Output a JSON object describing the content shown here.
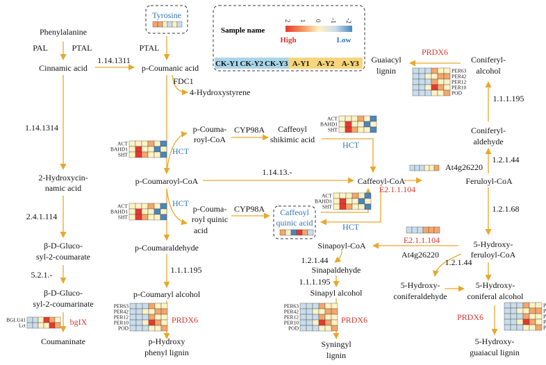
{
  "colors": {
    "arrow": "#E9A82B",
    "enzyme_red": "#D9342B",
    "enzyme_blue": "#2E74B5",
    "high": "#E8382E",
    "mid_high": "#F5A66A",
    "mid": "#FFF3C4",
    "mid_low": "#C9DDEB",
    "low": "#4A86BF",
    "ck_label_bg": "#A9D5EA",
    "a_label_bg": "#F6D57B"
  },
  "compounds": {
    "phenylalanine": "Phenylalanine",
    "cinnamic": "Cinnamic acid",
    "hydroxycin_1": "2-Hydroxycin-",
    "hydroxycin_2": "namic acid",
    "glucosyl_coumarate_1": "β-D-Gluco-",
    "glucosyl_coumarate_2": "syl-2-coumarate",
    "glucosyl_coumarinate_1": "β-D-Gluco-",
    "glucosyl_coumarinate_2": "syl-2-coumarinate",
    "coumaninate": "Coumaninate",
    "tyrosine": "Tyrosine",
    "p_coumanic": "p-Coumanic acid",
    "hydroxystyrene": "4-Hydroxystyrene",
    "p_coumaroyl_coa_a_1": "p-Couma-",
    "p_coumaroyl_coa_a_2": "royl-CoA",
    "caffeoyl_shikimic_1": "Caffeoyl",
    "caffeoyl_shikimic_2": "shikimic acid",
    "p_coumaroyl_coa": "p-Coumaroyl-CoA",
    "caffeoyl_coa": "Caffeoyl-CoA",
    "feruloyl_coa": "Feruloyl-CoA",
    "p_coumaroyl_quinic_1": "p-Couma-",
    "p_coumaroyl_quinic_2": "royl quinic",
    "p_coumaroyl_quinic_3": "acid",
    "caffeoyl_quinic_1": "Caffeoyl",
    "caffeoyl_quinic_2": "quinic acid",
    "p_coumaraldehyde": "p-Coumaraldehyde",
    "p_coumaryl_alcohol": "p-Coumaryl alcohol",
    "p_hydroxy_lignin_1": "p-Hydroxy",
    "p_hydroxy_lignin_2": "phenyl lignin",
    "sinapoyl_coa": "Sinapoyl-CoA",
    "sinapaldehyde": "Sinapaldehyde",
    "sinapyl_alcohol": "Sinapyl alcohol",
    "syningyl_lignin_1": "Syningyl",
    "syningyl_lignin_2": "lignin",
    "hydroxy_feruloyl_1": "5-Hydroxy-",
    "hydroxy_feruloyl_2": "feruloyl-CoA",
    "hydroxy_coniferaldehyde_1": "5-Hydroxy-",
    "hydroxy_coniferaldehyde_2": "coniferaldehyde",
    "hydroxy_coniferal_alcohol_1": "5-Hydroxy-",
    "hydroxy_coniferal_alcohol_2": "coniferal alcohol",
    "hydroxy_guaiacul_lignin_1": "5-Hydroxy-",
    "hydroxy_guaiacul_lignin_2": "guaiacul lignin",
    "coniferyl_aldehyde_1": "Coniferyl-",
    "coniferyl_aldehyde_2": "aldehyde",
    "coniferyl_alcohol_1": "Coniferyl-",
    "coniferyl_alcohol_2": "alcohol",
    "guaiacyl_lignin_1": "Guaiacyl",
    "guaiacyl_lignin_2": "lignin"
  },
  "enzymes": {
    "pal_1": "PAL",
    "ptal_1": "PTAL",
    "ptal_2": "PTAL",
    "ec_1_14_1311": "1.14.1311",
    "ec_1_14_1314": "1.14.1314",
    "ec_2_4_1_114": "2.4.1.114",
    "ec_5_2_1": "5.2.1.-",
    "bglx": "bgIX",
    "fdc1": "FDC1",
    "hct_1": "HCT",
    "hct_2": "HCT",
    "hct_3": "HCT",
    "hct_4": "HCT",
    "cyp98a_1": "CYP98A",
    "cyp98a_2": "CYP98A",
    "ec_1_14_13": "1.14.13.-",
    "ec_1_1_1_195_a": "1.1.1.195",
    "ec_1_1_1_195_b": "1.1.1.195",
    "ec_1_1_1_195_c": "1.1.1.195",
    "prdx6_a": "PRDX6",
    "prdx6_b": "PRDX6",
    "prdx6_c": "PRDX6",
    "prdx6_d": "PRDX6",
    "ec_1_2_1_44_a": "1.2.1.44",
    "ec_1_2_1_44_b": "1.2.1.44",
    "ec_1_2_1_44_c": "1.2.1.44",
    "ec_1_2_1_68": "1.2.1.68",
    "at4g26220_a": "At4g26220",
    "at4g26220_b": "At4g26220",
    "ec_2_1_1_104_a": "E2.1.1.104",
    "ec_2_1_1_104_b": "E2.1.1.104"
  },
  "legend": {
    "title": "Sample name",
    "high": "High",
    "low": "Low",
    "ticks": [
      "2",
      "1",
      "0",
      "-1",
      "-2"
    ],
    "samples": [
      "CK-Y1",
      "CK-Y2",
      "CK-Y3",
      "A-Y1",
      "A-Y2",
      "A-Y3"
    ]
  },
  "gene_labels": {
    "act_bahd_sht": [
      "ACT",
      "BAHD1",
      "SHT"
    ],
    "per_pod": [
      "PER63",
      "PER42",
      "PER12",
      "PER10",
      "POD"
    ],
    "bglu": [
      "BGLU41",
      "Lct"
    ]
  },
  "heatmaps": {
    "tyrosine": [
      [
        "mh",
        "mh",
        "mid",
        "ml",
        "mid",
        "ml"
      ]
    ],
    "at4g": [
      [
        "ml",
        "ml",
        "ml",
        "mid",
        "mid",
        "mh"
      ]
    ],
    "e2_1_1_104": [
      [
        "ml",
        "ml",
        "ml",
        "mh",
        "mh",
        "mh"
      ]
    ],
    "caffeoyl_quinic": [
      [
        "mh",
        "mid",
        "lo",
        "hi",
        "mh",
        "ml"
      ]
    ],
    "hct_upper": [
      [
        "mid",
        "mid",
        "mid",
        "mh",
        "mid",
        "lo"
      ],
      [
        "mid",
        "hi",
        "mid",
        "mid",
        "lo",
        "mid"
      ],
      [
        "mid",
        "hi",
        "mh",
        "mid",
        "mid",
        "lo"
      ]
    ],
    "shikimic": [
      [
        "mid",
        "mid",
        "mid",
        "mh",
        "mid",
        "lo"
      ],
      [
        "mid",
        "hi",
        "mid",
        "mid",
        "lo",
        "mid"
      ],
      [
        "mid",
        "hi",
        "mh",
        "mid",
        "mid",
        "lo"
      ]
    ],
    "hct_lower": [
      [
        "mid",
        "mid",
        "mid",
        "mh",
        "mid",
        "lo"
      ],
      [
        "mid",
        "hi",
        "mid",
        "mid",
        "lo",
        "mid"
      ],
      [
        "mid",
        "hi",
        "mh",
        "mid",
        "mid",
        "lo"
      ]
    ],
    "caffeoyl_coa_hm": [
      [
        "mid",
        "mid",
        "mid",
        "mh",
        "mid",
        "lo"
      ],
      [
        "mid",
        "hi",
        "mid",
        "mid",
        "lo",
        "mid"
      ],
      [
        "mid",
        "hi",
        "mh",
        "mid",
        "mid",
        "lo"
      ]
    ],
    "per_coniferyl": [
      [
        "ml",
        "ml",
        "ml",
        "mh",
        "mid",
        "mid"
      ],
      [
        "ml",
        "ml",
        "mid",
        "mid",
        "mh",
        "mh"
      ],
      [
        "ml",
        "ml",
        "ml",
        "mh",
        "mid",
        "mid"
      ],
      [
        "ml",
        "ml",
        "mid",
        "hi",
        "mh",
        "mid"
      ],
      [
        "ml",
        "ml",
        "ml",
        "mid",
        "mid",
        "mh"
      ]
    ],
    "per_p_hydroxy": [
      [
        "ml",
        "ml",
        "ml",
        "mh",
        "mid",
        "mid"
      ],
      [
        "ml",
        "ml",
        "mid",
        "mid",
        "mh",
        "mh"
      ],
      [
        "ml",
        "ml",
        "ml",
        "mh",
        "mid",
        "mid"
      ],
      [
        "ml",
        "ml",
        "mid",
        "hi",
        "mh",
        "mid"
      ],
      [
        "ml",
        "ml",
        "ml",
        "mid",
        "mid",
        "mh"
      ]
    ],
    "per_syningyl": [
      [
        "ml",
        "ml",
        "ml",
        "mh",
        "mid",
        "mid"
      ],
      [
        "ml",
        "ml",
        "mid",
        "mid",
        "mh",
        "mh"
      ],
      [
        "ml",
        "ml",
        "ml",
        "mh",
        "mid",
        "mid"
      ],
      [
        "ml",
        "ml",
        "mid",
        "hi",
        "mh",
        "mid"
      ],
      [
        "ml",
        "ml",
        "ml",
        "mid",
        "mid",
        "mh"
      ]
    ],
    "per_hydroxy_guaiacul": [
      [
        "ml",
        "ml",
        "ml",
        "mh",
        "mid",
        "mid"
      ],
      [
        "ml",
        "ml",
        "mid",
        "mid",
        "mh",
        "mh"
      ],
      [
        "ml",
        "ml",
        "ml",
        "mh",
        "mid",
        "mid"
      ],
      [
        "ml",
        "ml",
        "mid",
        "hi",
        "mh",
        "mid"
      ],
      [
        "ml",
        "ml",
        "ml",
        "mid",
        "mid",
        "mh"
      ]
    ],
    "bglu": [
      [
        "ml",
        "ml",
        "mid",
        "hi",
        "mh",
        "mid"
      ],
      [
        "ml",
        "ml",
        "mid",
        "mid",
        "hi",
        "mh"
      ]
    ]
  }
}
